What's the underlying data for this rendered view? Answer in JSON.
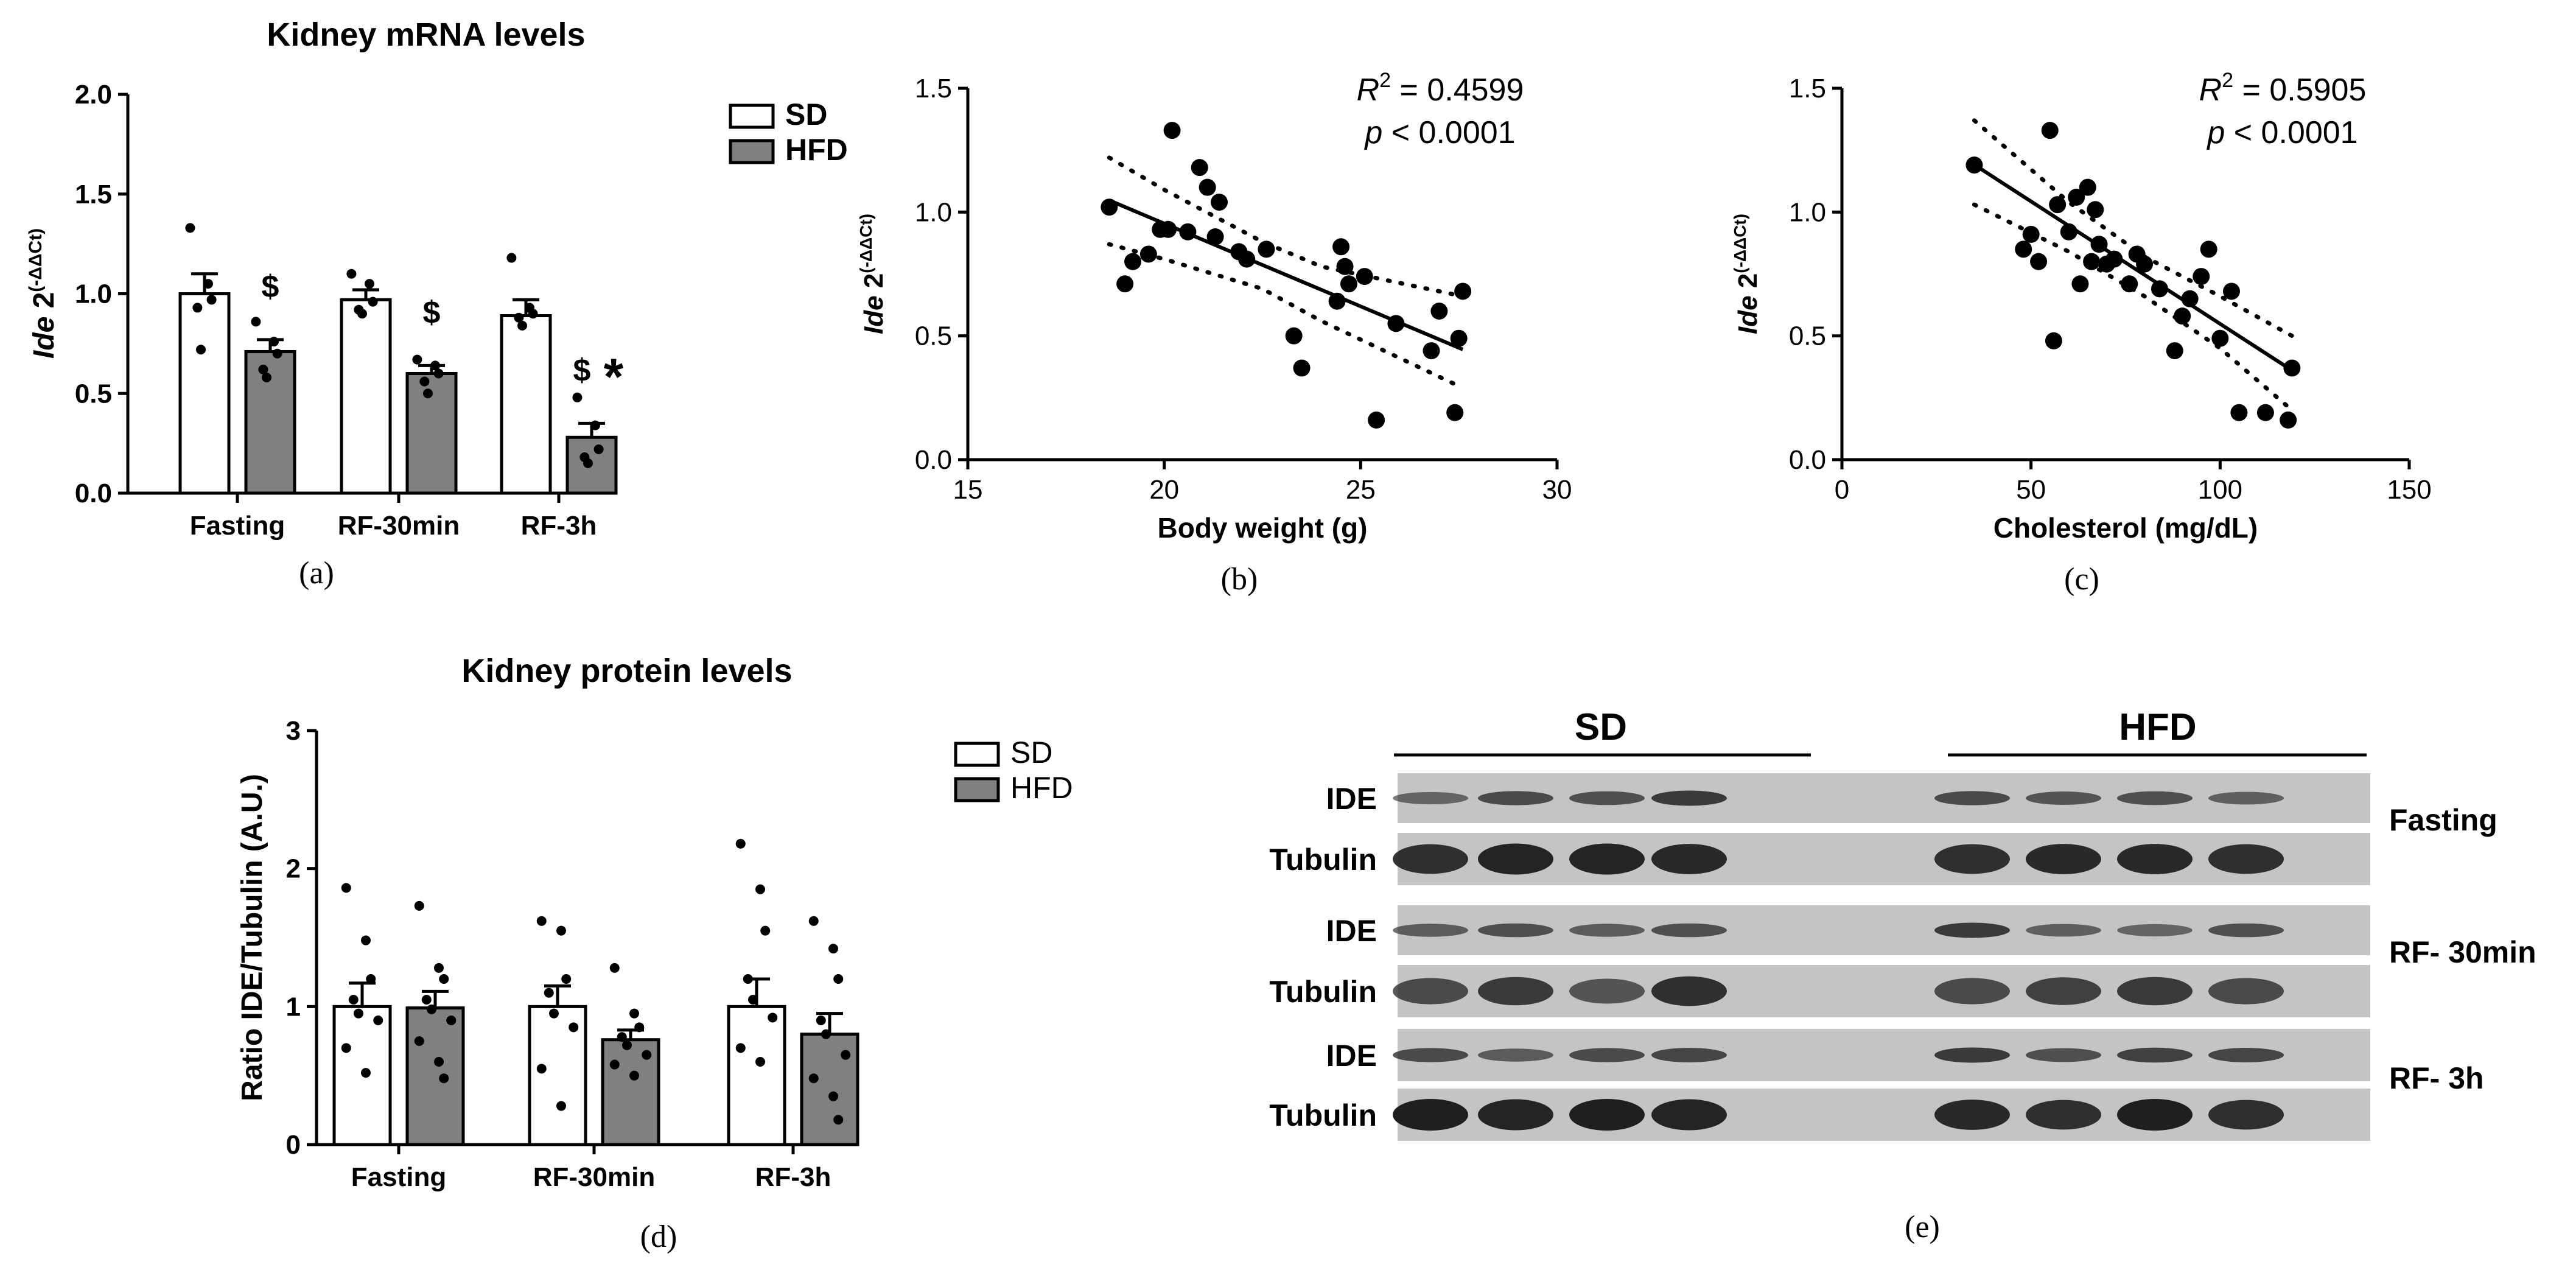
{
  "colors": {
    "sd_bar": "#ffffff",
    "hfd_bar": "#808080",
    "ink": "#000000",
    "blot_bg": "#c4c4c4",
    "band": "#1f1f1f"
  },
  "chart_data": [
    {
      "id": "a",
      "type": "bar",
      "panel_label": "(a)",
      "title": "Kidney mRNA levels",
      "ylabel_gene": "Ide",
      "ylabel_rest": " 2",
      "ylabel_sup": "(-ΔΔCt)",
      "categories": [
        "Fasting",
        "RF-30min",
        "RF-3h"
      ],
      "ylim": [
        0,
        2.0
      ],
      "yticks": [
        0,
        0.5,
        1.0,
        1.5,
        2.0
      ],
      "ytick_labels": [
        "0.0",
        "0.5",
        "1.0",
        "1.5",
        "2.0"
      ],
      "legend": [
        "SD",
        "HFD"
      ],
      "series": [
        {
          "name": "SD",
          "values": [
            1.0,
            0.97,
            0.89
          ],
          "sem": [
            0.1,
            0.05,
            0.08
          ],
          "points": [
            [
              1.33,
              1.05,
              0.97,
              0.93,
              0.72
            ],
            [
              1.1,
              1.05,
              0.96,
              0.92,
              0.9
            ],
            [
              1.18,
              0.93,
              0.9,
              0.88,
              0.84
            ]
          ]
        },
        {
          "name": "HFD",
          "values": [
            0.71,
            0.6,
            0.28
          ],
          "sem": [
            0.06,
            0.04,
            0.07
          ],
          "points": [
            [
              0.86,
              0.76,
              0.7,
              0.62,
              0.58
            ],
            [
              0.67,
              0.64,
              0.6,
              0.56,
              0.5
            ],
            [
              0.48,
              0.34,
              0.22,
              0.18,
              0.15
            ]
          ]
        }
      ],
      "annotations": [
        "$",
        "$",
        "$",
        "*"
      ]
    },
    {
      "id": "b",
      "type": "scatter",
      "panel_label": "(b)",
      "xlabel": "Body weight (g)",
      "ylabel_gene": "Ide",
      "ylabel_rest": " 2",
      "ylabel_sup": "(-ΔΔCt)",
      "xlim": [
        15,
        30
      ],
      "ylim": [
        0,
        1.5
      ],
      "xticks": [
        15,
        20,
        25,
        30
      ],
      "xtick_labels": [
        "15",
        "20",
        "25",
        "30"
      ],
      "yticks": [
        0,
        0.5,
        1.0,
        1.5
      ],
      "ytick_labels": [
        "0.0",
        "0.5",
        "1.0",
        "1.5"
      ],
      "stat_r2_prefix": "R",
      "stat_r2_value": " = 0.4599",
      "stat_p": "p",
      "stat_p_value": " < 0.0001",
      "x": [
        18.6,
        19.0,
        19.2,
        19.6,
        19.9,
        20.1,
        20.2,
        20.6,
        20.9,
        21.1,
        21.3,
        21.4,
        21.9,
        22.1,
        22.6,
        23.3,
        23.5,
        24.4,
        24.5,
        24.6,
        24.7,
        25.1,
        25.4,
        25.9,
        26.8,
        27.0,
        27.4,
        27.5,
        27.6
      ],
      "y": [
        1.02,
        0.71,
        0.8,
        0.83,
        0.93,
        0.93,
        1.33,
        0.92,
        1.18,
        1.1,
        0.9,
        1.04,
        0.84,
        0.81,
        0.85,
        0.5,
        0.37,
        0.64,
        0.86,
        0.78,
        0.71,
        0.74,
        0.16,
        0.55,
        0.44,
        0.6,
        0.19,
        0.49,
        0.68
      ],
      "fit": {
        "slope": -0.0669,
        "intercept": 2.2917,
        "x_range": [
          18.6,
          27.6
        ]
      },
      "ci_upper": [
        [
          18.6,
          1.22
        ],
        [
          20.0,
          1.09
        ],
        [
          22.5,
          0.88
        ],
        [
          24.0,
          0.78
        ],
        [
          27.6,
          0.66
        ]
      ],
      "ci_lower": [
        [
          18.6,
          0.87
        ],
        [
          20.0,
          0.81
        ],
        [
          22.5,
          0.69
        ],
        [
          24.0,
          0.56
        ],
        [
          27.6,
          0.29
        ]
      ]
    },
    {
      "id": "c",
      "type": "scatter",
      "panel_label": "(c)",
      "xlabel": "Cholesterol (mg/dL)",
      "ylabel_gene": "Ide",
      "ylabel_rest": " 2",
      "ylabel_sup": "(-ΔΔCt)",
      "xlim": [
        0,
        150
      ],
      "ylim": [
        0,
        1.5
      ],
      "xticks": [
        0,
        50,
        100,
        150
      ],
      "xtick_labels": [
        "0",
        "50",
        "100",
        "150"
      ],
      "yticks": [
        0,
        0.5,
        1.0,
        1.5
      ],
      "ytick_labels": [
        "0.0",
        "0.5",
        "1.0",
        "1.5"
      ],
      "stat_r2_prefix": "R",
      "stat_r2_value": " = 0.5905",
      "stat_p": "p",
      "stat_p_value": " < 0.0001",
      "x": [
        35,
        48,
        50,
        52,
        55,
        56,
        57,
        60,
        62,
        63,
        65,
        66,
        67,
        68,
        70,
        72,
        76,
        78,
        80,
        84,
        88,
        90,
        92,
        95,
        97,
        100,
        103,
        105,
        112,
        118,
        119
      ],
      "y": [
        1.19,
        0.85,
        0.91,
        0.8,
        1.33,
        0.48,
        1.03,
        0.92,
        1.06,
        0.71,
        1.1,
        0.8,
        1.01,
        0.87,
        0.79,
        0.81,
        0.71,
        0.83,
        0.79,
        0.69,
        0.44,
        0.58,
        0.65,
        0.74,
        0.85,
        0.49,
        0.68,
        0.19,
        0.19,
        0.16,
        0.37
      ],
      "fit": {
        "slope": -0.00989,
        "intercept": 1.5376,
        "x_range": [
          35,
          119
        ]
      },
      "ci_upper": [
        [
          35,
          1.37
        ],
        [
          60,
          1.04
        ],
        [
          80,
          0.82
        ],
        [
          100,
          0.66
        ],
        [
          119,
          0.5
        ]
      ],
      "ci_lower": [
        [
          35,
          1.03
        ],
        [
          60,
          0.84
        ],
        [
          80,
          0.66
        ],
        [
          100,
          0.45
        ],
        [
          119,
          0.2
        ]
      ]
    },
    {
      "id": "d",
      "type": "bar",
      "panel_label": "(d)",
      "title": "Kidney protein levels",
      "ylabel": "Ratio IDE/Tubulin (A.U.)",
      "categories": [
        "Fasting",
        "RF-30min",
        "RF-3h"
      ],
      "ylim": [
        0,
        3
      ],
      "yticks": [
        0,
        1,
        2,
        3
      ],
      "ytick_labels": [
        "0",
        "1",
        "2",
        "3"
      ],
      "legend": [
        "SD",
        "HFD"
      ],
      "series": [
        {
          "name": "SD",
          "values": [
            1.0,
            1.0,
            1.0
          ],
          "sem": [
            0.17,
            0.15,
            0.2
          ],
          "points": [
            [
              1.86,
              1.48,
              1.2,
              1.05,
              0.95,
              0.9,
              0.7,
              0.52
            ],
            [
              1.62,
              1.55,
              1.2,
              1.1,
              0.95,
              0.85,
              0.55,
              0.28
            ],
            [
              2.18,
              1.85,
              1.55,
              1.2,
              1.05,
              0.92,
              0.7,
              0.6
            ]
          ]
        },
        {
          "name": "HFD",
          "values": [
            0.99,
            0.76,
            0.8
          ],
          "sem": [
            0.12,
            0.07,
            0.15
          ],
          "points": [
            [
              1.73,
              1.28,
              1.2,
              1.05,
              0.98,
              0.9,
              0.75,
              0.6,
              0.48
            ],
            [
              1.28,
              0.95,
              0.85,
              0.78,
              0.72,
              0.65,
              0.58,
              0.5
            ],
            [
              1.62,
              1.42,
              1.2,
              0.9,
              0.8,
              0.65,
              0.48,
              0.35,
              0.18
            ]
          ]
        }
      ]
    }
  ],
  "blot": {
    "panel_label": "(e)",
    "groups": [
      "SD",
      "HFD"
    ],
    "rows": [
      {
        "label": "IDE",
        "condition": "Fasting"
      },
      {
        "label": "Tubulin",
        "condition": ""
      },
      {
        "label": "IDE",
        "condition": "RF- 30min"
      },
      {
        "label": "Tubulin",
        "condition": ""
      },
      {
        "label": "IDE",
        "condition": "RF- 3h"
      },
      {
        "label": "Tubulin",
        "condition": ""
      }
    ],
    "band_intensity": [
      [
        0.35,
        0.6,
        0.55,
        0.75,
        0.6,
        0.5,
        0.55,
        0.4
      ],
      [
        0.85,
        0.95,
        0.95,
        0.9,
        0.85,
        0.9,
        0.9,
        0.85
      ],
      [
        0.45,
        0.55,
        0.45,
        0.55,
        0.75,
        0.4,
        0.35,
        0.55
      ],
      [
        0.6,
        0.75,
        0.5,
        0.85,
        0.6,
        0.7,
        0.75,
        0.6
      ],
      [
        0.6,
        0.45,
        0.6,
        0.65,
        0.75,
        0.55,
        0.7,
        0.65
      ],
      [
        1.0,
        0.95,
        1.0,
        0.95,
        0.9,
        0.85,
        1.0,
        0.85
      ]
    ]
  }
}
